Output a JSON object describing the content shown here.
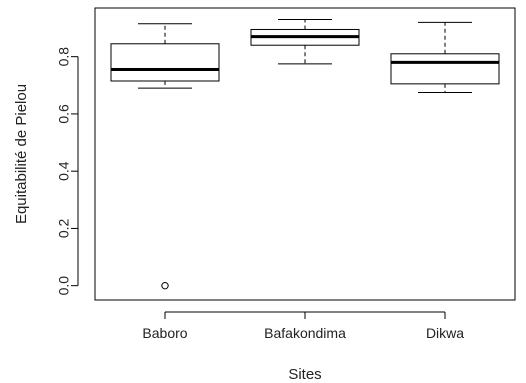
{
  "chart_data": {
    "type": "boxplot",
    "xlabel": "Sites",
    "ylabel": "Equitabilité de Pielou",
    "ylim": [
      -0.05,
      0.97
    ],
    "yticks": [
      0.0,
      0.2,
      0.4,
      0.6,
      0.8
    ],
    "ytick_labels": [
      "0.0",
      "0.2",
      "0.4",
      "0.6",
      "0.8"
    ],
    "grid": false,
    "categories": [
      "Baboro",
      "Bafakondima",
      "Dikwa"
    ],
    "boxes": [
      {
        "category": "Baboro",
        "whisker_low": 0.69,
        "q1": 0.715,
        "median": 0.755,
        "q3": 0.845,
        "whisker_high": 0.915,
        "outliers": [
          0.0
        ]
      },
      {
        "category": "Bafakondima",
        "whisker_low": 0.775,
        "q1": 0.84,
        "median": 0.87,
        "q3": 0.895,
        "whisker_high": 0.93,
        "outliers": []
      },
      {
        "category": "Dikwa",
        "whisker_low": 0.675,
        "q1": 0.705,
        "median": 0.78,
        "q3": 0.81,
        "whisker_high": 0.92,
        "outliers": []
      }
    ]
  }
}
